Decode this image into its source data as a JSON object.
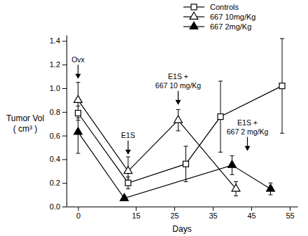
{
  "chart_data": {
    "type": "line",
    "x_label": "Days",
    "y_label": [
      "Tumor Vol",
      "( cm³ )"
    ],
    "xlim": [
      -3,
      57
    ],
    "xticks": [
      0,
      15,
      25,
      35,
      45,
      55
    ],
    "ylim": [
      0,
      1.45
    ],
    "yticks": [
      {
        "value": 0,
        "label": "0.0"
      },
      0.2,
      0.4,
      0.6,
      0.8,
      {
        "value": 1,
        "label": "1.0"
      },
      1.2,
      1.4
    ],
    "legend": "upper right",
    "series": [
      {
        "name": "Controls",
        "color": "#000000",
        "marker": "open-square",
        "x": [
          0,
          13,
          28,
          37,
          53
        ],
        "values": [
          0.79,
          0.2,
          0.36,
          0.76,
          1.02
        ],
        "errors": [
          0.06,
          0.05,
          0.15,
          0.3,
          0.4
        ]
      },
      {
        "name": "667 10mg/Kg",
        "color": "#000000",
        "marker": "open-triangle",
        "x": [
          0,
          13,
          26,
          41
        ],
        "values": [
          0.9,
          0.3,
          0.73,
          0.15
        ],
        "errors": [
          0.15,
          0.12,
          0.09,
          0.06
        ]
      },
      {
        "name": "667 2mg/Kg",
        "color": "#000000",
        "marker": "filled-triangle",
        "x": [
          0,
          12,
          40,
          50
        ],
        "values": [
          0.63,
          0.07,
          0.35,
          0.15
        ],
        "errors": [
          0.18,
          0.02,
          0.08,
          0.05
        ]
      }
    ],
    "annotations": [
      {
        "text": [
          "Ovx"
        ],
        "x": 0,
        "y": 1.08
      },
      {
        "text": [
          "E1S"
        ],
        "x": 13,
        "y": 0.44
      },
      {
        "text": [
          "E1S +",
          "667 10 mg/Kg"
        ],
        "x": 26,
        "y": 0.86
      },
      {
        "text": [
          "E1S +",
          "667 2 mg/Kg"
        ],
        "x": 44,
        "y": 0.47
      }
    ]
  }
}
